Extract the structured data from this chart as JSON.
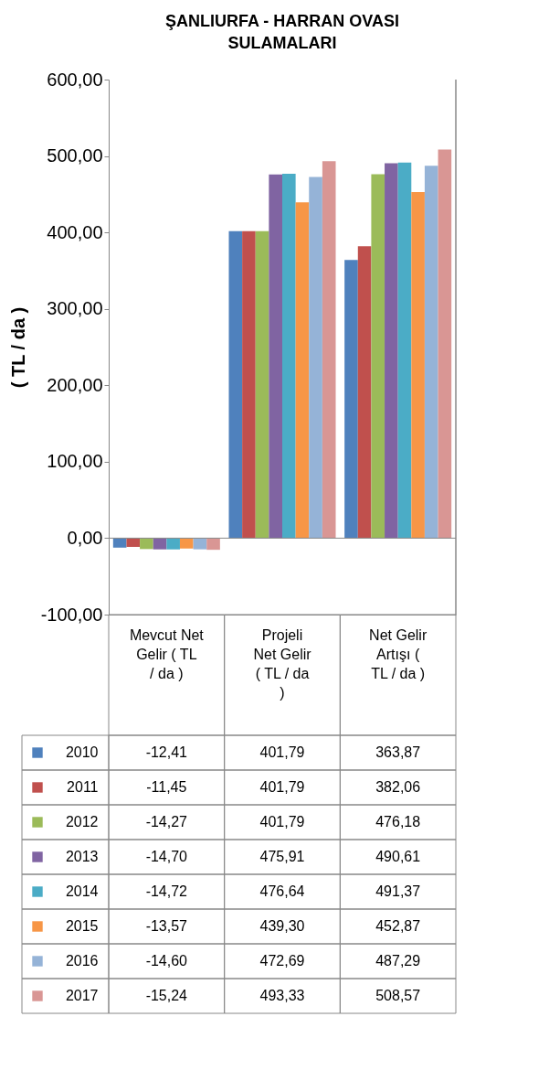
{
  "chart_data": {
    "type": "bar",
    "title": "ŞANLIURFA - HARRAN OVASI SULAMALARI",
    "ylabel": "( TL / da )",
    "categories": [
      "Mevcut Net Gelir ( TL / da )",
      "Projeli Net Gelir ( TL / da )",
      "Net Gelir Artışı ( TL / da )"
    ],
    "series": [
      {
        "name": "2010",
        "color": "#4f81bd",
        "values": [
          -12.41,
          401.79,
          363.87
        ],
        "value_labels": [
          "-12,41",
          "401,79",
          "363,87"
        ]
      },
      {
        "name": "2011",
        "color": "#c0504d",
        "values": [
          -11.45,
          401.79,
          382.06
        ],
        "value_labels": [
          "-11,45",
          "401,79",
          "382,06"
        ]
      },
      {
        "name": "2012",
        "color": "#9bbb59",
        "values": [
          -14.27,
          401.79,
          476.18
        ],
        "value_labels": [
          "-14,27",
          "401,79",
          "476,18"
        ]
      },
      {
        "name": "2013",
        "color": "#8064a2",
        "values": [
          -14.7,
          475.91,
          490.61
        ],
        "value_labels": [
          "-14,70",
          "475,91",
          "490,61"
        ]
      },
      {
        "name": "2014",
        "color": "#4bacc6",
        "values": [
          -14.72,
          476.64,
          491.37
        ],
        "value_labels": [
          "-14,72",
          "476,64",
          "491,37"
        ]
      },
      {
        "name": "2015",
        "color": "#f79646",
        "values": [
          -13.57,
          439.3,
          452.87
        ],
        "value_labels": [
          "-13,57",
          "439,30",
          "452,87"
        ]
      },
      {
        "name": "2016",
        "color": "#95b3d7",
        "values": [
          -14.6,
          472.69,
          487.29
        ],
        "value_labels": [
          "-14,60",
          "472,69",
          "487,29"
        ]
      },
      {
        "name": "2017",
        "color": "#d99694",
        "values": [
          -15.24,
          493.33,
          508.57
        ],
        "value_labels": [
          "-15,24",
          "493,33",
          "508,57"
        ]
      }
    ],
    "ylim": [
      -100,
      600
    ],
    "yticks": [
      {
        "value": -100,
        "label": "-100,00"
      },
      {
        "value": 0,
        "label": "0,00"
      },
      {
        "value": 100,
        "label": "100,00"
      },
      {
        "value": 200,
        "label": "200,00"
      },
      {
        "value": 300,
        "label": "300,00"
      },
      {
        "value": 400,
        "label": "400,00"
      },
      {
        "value": 500,
        "label": "500,00"
      },
      {
        "value": 600,
        "label": "600,00"
      }
    ],
    "ref_lines": [
      {
        "axis": "y",
        "value": 0,
        "color": "#888888"
      }
    ],
    "grid": false,
    "legend": "bottom"
  }
}
